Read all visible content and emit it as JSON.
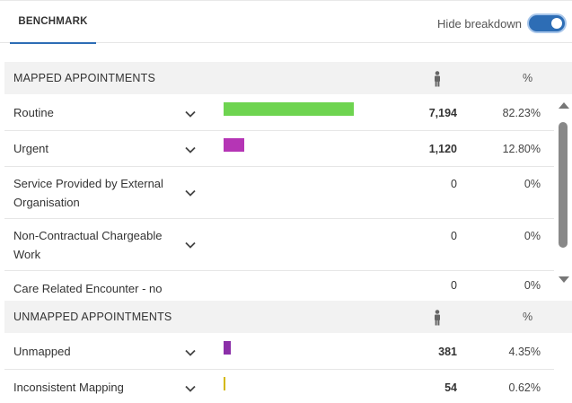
{
  "tabs": [
    {
      "label": "BENCHMARK",
      "active": true
    }
  ],
  "toggle": {
    "label": "Hide breakdown",
    "on": true,
    "color": "#2d6db5"
  },
  "icons": {
    "expand": "chevron-down-icon",
    "person": "person-icon"
  },
  "mapped": {
    "title": "MAPPED APPOINTMENTS",
    "pct_header": "%",
    "rows": [
      {
        "label": "Routine",
        "count": "7,194",
        "percent": "82.23%",
        "bar_fraction": 0.8223,
        "bar_color": "#6ed450",
        "bold": true
      },
      {
        "label": "Urgent",
        "count": "1,120",
        "percent": "12.80%",
        "bar_fraction": 0.128,
        "bar_color": "#b535b5",
        "bold": true
      },
      {
        "label": "Service Provided by External Organisation",
        "count": "0",
        "percent": "0%",
        "bar_fraction": 0,
        "bar_color": "",
        "bold": false
      },
      {
        "label": "Non-Contractual Chargeable Work",
        "count": "0",
        "percent": "0%",
        "bar_fraction": 0,
        "bar_color": "",
        "bold": false
      },
      {
        "label": "Care Related Encounter - no",
        "count": "0",
        "percent": "0%",
        "bar_fraction": 0,
        "bar_color": "",
        "bold": false
      }
    ]
  },
  "unmapped": {
    "title": "UNMAPPED APPOINTMENTS",
    "pct_header": "%",
    "rows": [
      {
        "label": "Unmapped",
        "count": "381",
        "percent": "4.35%",
        "bar_fraction": 0.0435,
        "bar_color": "#8b2fa8",
        "bold": true
      },
      {
        "label": "Inconsistent Mapping",
        "count": "54",
        "percent": "0.62%",
        "bar_fraction": 0.0062,
        "bar_color": "#d4b800",
        "bold": true
      }
    ]
  }
}
